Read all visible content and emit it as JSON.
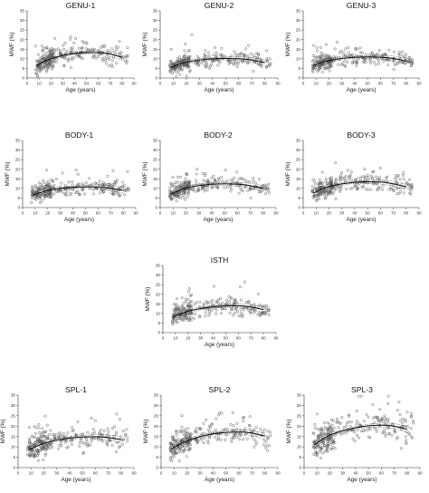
{
  "chart_data": [
    {
      "type": "scatter",
      "title": "GENU-1",
      "xlabel": "Age (years)",
      "ylabel": "MWF (%)",
      "xlim": [
        0,
        90
      ],
      "ylim": [
        0,
        35
      ],
      "xticks": [
        "0",
        "10",
        "20",
        "30",
        "40",
        "50",
        "60",
        "70",
        "80",
        "90"
      ],
      "yticks": [
        "0",
        "5",
        "10",
        "15",
        "20",
        "25",
        "30",
        "35"
      ],
      "fit": {
        "x": [
          8,
          15,
          20,
          30,
          40,
          50,
          60,
          65,
          70,
          80
        ],
        "y": [
          6.5,
          8.8,
          10.0,
          11.8,
          12.8,
          13.3,
          13.2,
          13.0,
          12.5,
          10.8
        ]
      },
      "scatter": {
        "mean_sd": 2.6,
        "n": 280
      }
    },
    {
      "type": "scatter",
      "title": "GENU-2",
      "xlabel": "Age (years)",
      "ylabel": "MWF (%)",
      "xlim": [
        0,
        90
      ],
      "ylim": [
        0,
        35
      ],
      "xticks": [
        "0",
        "10",
        "20",
        "30",
        "40",
        "50",
        "60",
        "70",
        "80",
        "90"
      ],
      "yticks": [
        "0",
        "5",
        "10",
        "15",
        "20",
        "25",
        "30",
        "35"
      ],
      "fit": {
        "x": [
          8,
          15,
          20,
          30,
          40,
          50,
          60,
          65,
          70,
          80
        ],
        "y": [
          5.5,
          7.3,
          8.2,
          9.4,
          10.0,
          10.2,
          10.0,
          9.8,
          9.4,
          8.0
        ]
      },
      "scatter": {
        "mean_sd": 2.2,
        "n": 280
      }
    },
    {
      "type": "scatter",
      "title": "GENU-3",
      "xlabel": "Age (years)",
      "ylabel": "MWF (%)",
      "xlim": [
        0,
        90
      ],
      "ylim": [
        0,
        35
      ],
      "xticks": [
        "0",
        "10",
        "20",
        "30",
        "40",
        "50",
        "60",
        "70",
        "80",
        "90"
      ],
      "yticks": [
        "0",
        "5",
        "10",
        "15",
        "20",
        "25",
        "30",
        "35"
      ],
      "fit": {
        "x": [
          8,
          15,
          20,
          30,
          40,
          50,
          60,
          65,
          70,
          80
        ],
        "y": [
          6.5,
          8.2,
          9.0,
          10.2,
          10.8,
          11.0,
          10.8,
          10.6,
          10.2,
          8.8
        ]
      },
      "scatter": {
        "mean_sd": 2.0,
        "n": 280
      }
    },
    {
      "type": "scatter",
      "title": "BODY-1",
      "xlabel": "Age (years)",
      "ylabel": "MWF (%)",
      "xlim": [
        0,
        90
      ],
      "ylim": [
        0,
        35
      ],
      "xticks": [
        "0",
        "10",
        "20",
        "30",
        "40",
        "50",
        "60",
        "70",
        "80",
        "90"
      ],
      "yticks": [
        "0",
        "5",
        "10",
        "15",
        "20",
        "25",
        "30",
        "35"
      ],
      "fit": {
        "x": [
          8,
          15,
          20,
          30,
          40,
          50,
          60,
          65,
          70,
          80
        ],
        "y": [
          6.5,
          8.0,
          9.0,
          10.0,
          10.6,
          10.8,
          10.6,
          10.4,
          10.0,
          9.0
        ]
      },
      "scatter": {
        "mean_sd": 2.0,
        "n": 280
      }
    },
    {
      "type": "scatter",
      "title": "BODY-2",
      "xlabel": "Age (years)",
      "ylabel": "MWF (%)",
      "xlim": [
        0,
        90
      ],
      "ylim": [
        0,
        35
      ],
      "xticks": [
        "0",
        "10",
        "20",
        "30",
        "40",
        "50",
        "60",
        "70",
        "80",
        "90"
      ],
      "yticks": [
        "0",
        "5",
        "10",
        "15",
        "20",
        "25",
        "30",
        "35"
      ],
      "fit": {
        "x": [
          8,
          15,
          20,
          30,
          40,
          50,
          60,
          65,
          70,
          80
        ],
        "y": [
          7.0,
          9.0,
          10.2,
          11.5,
          12.2,
          12.4,
          12.2,
          11.9,
          11.4,
          10.0
        ]
      },
      "scatter": {
        "mean_sd": 2.2,
        "n": 280
      }
    },
    {
      "type": "scatter",
      "title": "BODY-3",
      "xlabel": "Age (years)",
      "ylabel": "MWF (%)",
      "xlim": [
        0,
        90
      ],
      "ylim": [
        0,
        35
      ],
      "xticks": [
        "0",
        "10",
        "20",
        "30",
        "40",
        "50",
        "60",
        "70",
        "80",
        "90"
      ],
      "yticks": [
        "0",
        "5",
        "10",
        "15",
        "20",
        "25",
        "30",
        "35"
      ],
      "fit": {
        "x": [
          8,
          15,
          20,
          30,
          40,
          50,
          60,
          65,
          70,
          80
        ],
        "y": [
          7.5,
          9.8,
          11.0,
          12.4,
          13.2,
          13.5,
          13.3,
          13.0,
          12.4,
          10.8
        ]
      },
      "scatter": {
        "mean_sd": 2.4,
        "n": 280
      }
    },
    {
      "type": "scatter",
      "title": "ISTH",
      "xlabel": "Age (years)",
      "ylabel": "MWF (%)",
      "xlim": [
        0,
        90
      ],
      "ylim": [
        0,
        35
      ],
      "xticks": [
        "0",
        "10",
        "20",
        "30",
        "40",
        "50",
        "60",
        "70",
        "80",
        "90"
      ],
      "yticks": [
        "0",
        "5",
        "10",
        "15",
        "20",
        "25",
        "30",
        "35"
      ],
      "fit": {
        "x": [
          8,
          15,
          20,
          30,
          40,
          50,
          60,
          65,
          70,
          80
        ],
        "y": [
          8.0,
          10.0,
          11.2,
          12.6,
          13.5,
          14.0,
          14.0,
          13.8,
          13.4,
          12.0
        ]
      },
      "scatter": {
        "mean_sd": 2.4,
        "n": 280
      }
    },
    {
      "type": "scatter",
      "title": "SPL-1",
      "xlabel": "Age (years)",
      "ylabel": "MWF (%)",
      "xlim": [
        0,
        90
      ],
      "ylim": [
        0,
        35
      ],
      "xticks": [
        "0",
        "10",
        "20",
        "30",
        "40",
        "50",
        "60",
        "70",
        "80",
        "90"
      ],
      "yticks": [
        "0",
        "5",
        "10",
        "15",
        "20",
        "25",
        "30",
        "35"
      ],
      "fit": {
        "x": [
          8,
          15,
          20,
          30,
          40,
          50,
          60,
          65,
          70,
          80
        ],
        "y": [
          8.5,
          10.5,
          11.8,
          13.3,
          14.3,
          14.8,
          14.9,
          14.8,
          14.5,
          13.6
        ]
      },
      "scatter": {
        "mean_sd": 2.6,
        "n": 280
      }
    },
    {
      "type": "scatter",
      "title": "SPL-2",
      "xlabel": "Age (years)",
      "ylabel": "MWF (%)",
      "xlim": [
        0,
        90
      ],
      "ylim": [
        0,
        35
      ],
      "xticks": [
        "0",
        "10",
        "20",
        "30",
        "40",
        "50",
        "60",
        "70",
        "80",
        "90"
      ],
      "yticks": [
        "0",
        "5",
        "10",
        "15",
        "20",
        "25",
        "30",
        "35"
      ],
      "fit": {
        "x": [
          8,
          15,
          20,
          30,
          40,
          50,
          60,
          65,
          70,
          80
        ],
        "y": [
          9.0,
          11.5,
          13.0,
          15.0,
          16.3,
          17.0,
          17.2,
          17.1,
          16.7,
          15.2
        ]
      },
      "scatter": {
        "mean_sd": 3.0,
        "n": 280
      }
    },
    {
      "type": "scatter",
      "title": "SPL-3",
      "xlabel": "Age (years)",
      "ylabel": "MWF (%)",
      "xlim": [
        0,
        90
      ],
      "ylim": [
        0,
        35
      ],
      "xticks": [
        "0",
        "10",
        "20",
        "30",
        "40",
        "50",
        "60",
        "70",
        "80",
        "90"
      ],
      "yticks": [
        "0",
        "5",
        "10",
        "15",
        "20",
        "25",
        "30",
        "35"
      ],
      "fit": {
        "x": [
          8,
          15,
          20,
          30,
          40,
          50,
          60,
          65,
          70,
          80
        ],
        "y": [
          11.0,
          14.0,
          15.8,
          17.8,
          19.3,
          20.2,
          20.5,
          20.4,
          20.0,
          18.5
        ]
      },
      "scatter": {
        "mean_sd": 3.6,
        "n": 280
      }
    }
  ]
}
